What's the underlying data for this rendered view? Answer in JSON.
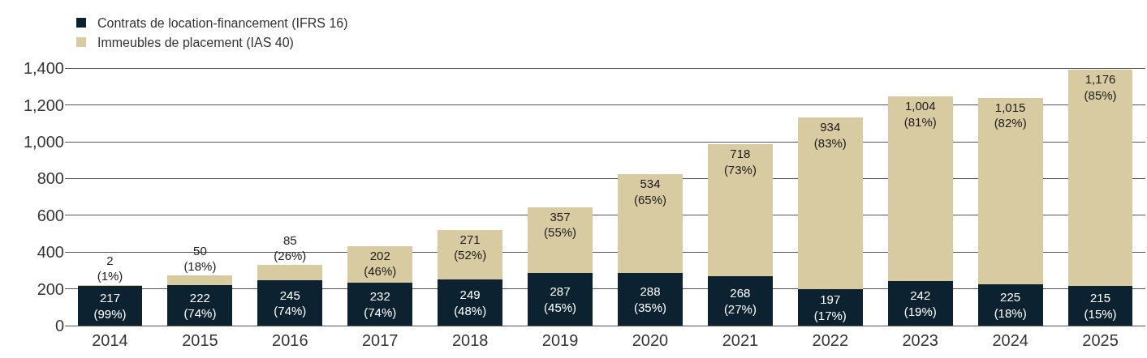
{
  "chart_data": {
    "type": "bar",
    "stacked": true,
    "legend": "top left",
    "grid": "y",
    "categories": [
      "2014",
      "2015",
      "2016",
      "2017",
      "2018",
      "2019",
      "2020",
      "2021",
      "2022",
      "2023",
      "2024",
      "2025"
    ],
    "ylim": [
      0,
      1410
    ],
    "yticks": [
      0,
      200,
      400,
      600,
      800,
      {
        "value": 1000,
        "label": "1,000"
      },
      {
        "value": 1200,
        "label": "1,200"
      },
      {
        "value": 1400,
        "label": "1,400"
      }
    ],
    "series": [
      {
        "name": "Contrats de location-financement (IFRS 16)",
        "color": "#0c2230",
        "values": [
          217,
          222,
          245,
          232,
          249,
          287,
          288,
          268,
          197,
          242,
          225,
          215
        ],
        "value_labels": [
          "217\n(99%)",
          "222\n(74%)",
          "245\n(74%)",
          "232\n(74%)",
          "249\n(48%)",
          "287\n(45%)",
          "288\n(35%)",
          "268\n(27%)",
          "197\n(17%)",
          "242\n(19%)",
          "225\n(18%)",
          "215\n(15%)"
        ]
      },
      {
        "name": "Immeubles de placement (IAS 40)",
        "color": "#d8cba2",
        "values": [
          2,
          50,
          85,
          202,
          271,
          357,
          534,
          718,
          934,
          1004,
          1015,
          1176
        ],
        "value_labels": [
          "2\n(1%)",
          "50\n(18%)",
          "85\n(26%)",
          "202\n(46%)",
          "271\n(52%)",
          "357\n(55%)",
          "534\n(65%)",
          "718\n(73%)",
          "934\n(83%)",
          "1,004\n(81%)",
          "1,015\n(82%)",
          "1,176\n(85%)"
        ]
      }
    ]
  }
}
